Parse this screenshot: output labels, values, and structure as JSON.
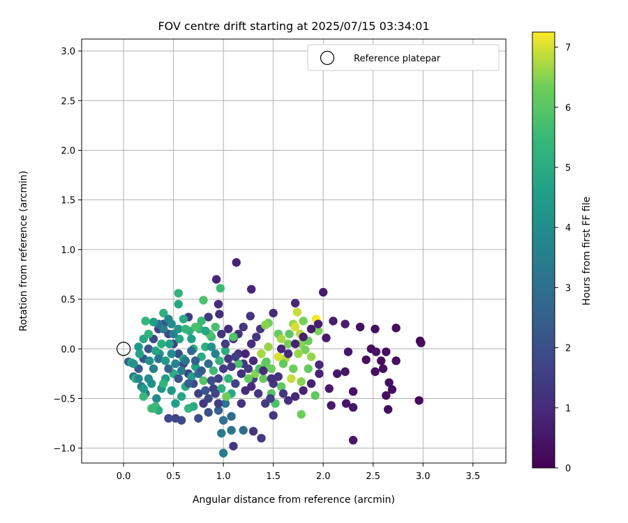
{
  "chart_data": {
    "type": "scatter",
    "title": "FOV centre drift starting at 2025/07/15 03:34:01",
    "xlabel": "Angular distance from reference (arcmin)",
    "ylabel": "Rotation from reference (arcmin)",
    "xlim": [
      -0.42,
      3.83
    ],
    "ylim": [
      -1.15,
      3.12
    ],
    "xticks": [
      0.0,
      0.5,
      1.0,
      1.5,
      2.0,
      2.5,
      3.0,
      3.5
    ],
    "xtick_labels": [
      "0.0",
      "0.5",
      "1.0",
      "1.5",
      "2.0",
      "2.5",
      "3.0",
      "3.5"
    ],
    "yticks": [
      -1.0,
      -0.5,
      0.0,
      0.5,
      1.0,
      1.5,
      2.0,
      2.5,
      3.0
    ],
    "ytick_labels": [
      "−1.0",
      "−0.5",
      "0.0",
      "0.5",
      "1.0",
      "1.5",
      "2.0",
      "2.5",
      "3.0"
    ],
    "grid": true,
    "legend": {
      "placement": "top-right",
      "entries": [
        "Reference platepar"
      ]
    },
    "reference_point": {
      "x": 0.0,
      "y": 0.0
    },
    "colorbar": {
      "label": "Hours from first FF file",
      "colormap": "viridis",
      "range": [
        0,
        7.25
      ],
      "ticks": [
        0,
        1,
        2,
        3,
        4,
        5,
        6,
        7
      ],
      "tick_labels": [
        "0",
        "1",
        "2",
        "3",
        "4",
        "5",
        "6",
        "7"
      ]
    },
    "points": [
      [
        1.13,
        0.87,
        0.8
      ],
      [
        0.93,
        0.7,
        0.9
      ],
      [
        1.28,
        0.6,
        0.9
      ],
      [
        2.0,
        0.57,
        0.6
      ],
      [
        0.97,
        0.61,
        5.6
      ],
      [
        0.55,
        0.56,
        5.3
      ],
      [
        0.8,
        0.49,
        5.8
      ],
      [
        1.72,
        0.46,
        0.9
      ],
      [
        0.95,
        0.45,
        1.0
      ],
      [
        1.5,
        0.36,
        1.0
      ],
      [
        0.55,
        0.45,
        4.9
      ],
      [
        0.4,
        0.36,
        5.2
      ],
      [
        0.65,
        0.32,
        1.5
      ],
      [
        1.74,
        0.37,
        6.9
      ],
      [
        1.93,
        0.3,
        7.2
      ],
      [
        1.8,
        0.28,
        6.4
      ],
      [
        2.1,
        0.28,
        0.7
      ],
      [
        2.22,
        0.25,
        0.7
      ],
      [
        2.37,
        0.22,
        0.3
      ],
      [
        2.52,
        0.2,
        0.3
      ],
      [
        2.73,
        0.21,
        0.3
      ],
      [
        2.97,
        0.08,
        0.2
      ],
      [
        2.98,
        0.06,
        0.2
      ],
      [
        2.03,
        0.11,
        0.6
      ],
      [
        2.25,
        -0.03,
        0.5
      ],
      [
        2.48,
        0.0,
        0.3
      ],
      [
        2.53,
        -0.03,
        0.4
      ],
      [
        2.63,
        -0.03,
        0.3
      ],
      [
        2.43,
        -0.11,
        0.3
      ],
      [
        2.58,
        -0.12,
        0.3
      ],
      [
        2.73,
        -0.12,
        0.3
      ],
      [
        2.6,
        -0.2,
        0.3
      ],
      [
        2.52,
        -0.23,
        0.3
      ],
      [
        2.22,
        -0.23,
        0.5
      ],
      [
        2.14,
        -0.25,
        0.5
      ],
      [
        1.96,
        -0.25,
        0.8
      ],
      [
        1.96,
        -0.16,
        0.9
      ],
      [
        2.66,
        -0.34,
        0.3
      ],
      [
        2.69,
        -0.41,
        0.3
      ],
      [
        2.63,
        -0.47,
        0.3
      ],
      [
        2.06,
        -0.4,
        0.6
      ],
      [
        2.3,
        -0.43,
        0.4
      ],
      [
        2.08,
        -0.57,
        0.6
      ],
      [
        2.23,
        -0.55,
        0.5
      ],
      [
        2.3,
        -0.59,
        0.5
      ],
      [
        2.65,
        -0.61,
        0.3
      ],
      [
        2.96,
        -0.52,
        0.2
      ],
      [
        2.3,
        -0.92,
        0.5
      ],
      [
        1.27,
        0.33,
        1.2
      ],
      [
        1.2,
        0.22,
        1.3
      ],
      [
        1.37,
        0.2,
        1.3
      ],
      [
        1.1,
        0.1,
        1.1
      ],
      [
        1.15,
        0.15,
        1.2
      ],
      [
        1.28,
        0.05,
        1.1
      ],
      [
        1.33,
        0.12,
        1.3
      ],
      [
        1.45,
        0.26,
        6.3
      ],
      [
        1.42,
        0.24,
        6.5
      ],
      [
        1.55,
        0.15,
        6.2
      ],
      [
        1.58,
        0.1,
        6.7
      ],
      [
        1.65,
        0.05,
        6.4
      ],
      [
        1.7,
        0.25,
        6.6
      ],
      [
        1.77,
        0.15,
        6.8
      ],
      [
        1.72,
        0.22,
        7.0
      ],
      [
        1.66,
        0.15,
        6.1
      ],
      [
        1.78,
        0.05,
        6.5
      ],
      [
        1.85,
        0.08,
        6.3
      ],
      [
        1.82,
        -0.01,
        6.4
      ],
      [
        1.75,
        -0.05,
        6.6
      ],
      [
        1.62,
        -0.1,
        6.8
      ],
      [
        1.55,
        -0.08,
        7.0
      ],
      [
        1.6,
        -0.15,
        6.2
      ],
      [
        1.7,
        -0.2,
        6.3
      ],
      [
        1.68,
        -0.3,
        6.9
      ],
      [
        1.78,
        -0.33,
        6.5
      ],
      [
        1.85,
        -0.2,
        6.2
      ],
      [
        1.88,
        -0.08,
        6.6
      ],
      [
        1.95,
        0.18,
        6.4
      ],
      [
        1.92,
        -0.47,
        6.1
      ],
      [
        1.78,
        -0.66,
        6.3
      ],
      [
        1.52,
        -0.55,
        5.8
      ],
      [
        1.48,
        -0.45,
        6.0
      ],
      [
        1.4,
        -0.3,
        6.2
      ],
      [
        1.42,
        -0.15,
        6.4
      ],
      [
        1.38,
        -0.05,
        6.7
      ],
      [
        1.45,
        0.02,
        6.6
      ],
      [
        1.48,
        -0.2,
        6.3
      ],
      [
        1.58,
        -0.38,
        6.1
      ],
      [
        1.5,
        -0.35,
        1.3
      ],
      [
        1.47,
        -0.5,
        1.5
      ],
      [
        1.5,
        -0.67,
        1.2
      ],
      [
        1.42,
        -0.55,
        1.4
      ],
      [
        1.35,
        -0.45,
        1.3
      ],
      [
        1.3,
        -0.3,
        1.5
      ],
      [
        1.25,
        -0.2,
        1.4
      ],
      [
        1.2,
        -0.15,
        1.3
      ],
      [
        1.15,
        -0.05,
        1.2
      ],
      [
        1.05,
        -0.1,
        1.3
      ],
      [
        1.0,
        -0.2,
        1.4
      ],
      [
        0.95,
        -0.3,
        1.6
      ],
      [
        0.9,
        -0.4,
        1.5
      ],
      [
        0.85,
        -0.5,
        1.7
      ],
      [
        0.8,
        -0.55,
        1.4
      ],
      [
        0.75,
        -0.45,
        1.6
      ],
      [
        0.7,
        -0.35,
        1.8
      ],
      [
        0.65,
        -0.25,
        1.5
      ],
      [
        0.6,
        -0.15,
        1.7
      ],
      [
        0.55,
        -0.05,
        1.9
      ],
      [
        0.5,
        0.05,
        1.6
      ],
      [
        0.45,
        0.15,
        1.8
      ],
      [
        0.4,
        0.25,
        2.0
      ],
      [
        0.35,
        0.2,
        1.7
      ],
      [
        0.3,
        0.1,
        1.9
      ],
      [
        0.25,
        0.0,
        2.1
      ],
      [
        0.2,
        -0.1,
        2.2
      ],
      [
        0.15,
        -0.2,
        2.3
      ],
      [
        0.1,
        -0.28,
        3.4
      ],
      [
        0.05,
        -0.13,
        2.4
      ],
      [
        0.18,
        -0.38,
        3.3
      ],
      [
        0.22,
        -0.45,
        3.6
      ],
      [
        0.28,
        -0.35,
        4.0
      ],
      [
        0.33,
        -0.5,
        3.9
      ],
      [
        0.38,
        -0.4,
        4.2
      ],
      [
        0.42,
        -0.3,
        4.5
      ],
      [
        0.48,
        -0.42,
        4.3
      ],
      [
        0.52,
        -0.55,
        4.6
      ],
      [
        0.58,
        -0.48,
        4.8
      ],
      [
        0.62,
        -0.38,
        5.0
      ],
      [
        0.68,
        -0.28,
        4.4
      ],
      [
        0.72,
        -0.18,
        4.7
      ],
      [
        0.78,
        -0.08,
        5.0
      ],
      [
        0.82,
        0.02,
        5.2
      ],
      [
        0.88,
        0.12,
        5.5
      ],
      [
        0.92,
        0.22,
        5.7
      ],
      [
        0.86,
        0.15,
        5.9
      ],
      [
        0.76,
        0.2,
        5.4
      ],
      [
        0.66,
        0.18,
        5.1
      ],
      [
        0.56,
        0.1,
        4.9
      ],
      [
        0.46,
        0.05,
        4.6
      ],
      [
        0.36,
        -0.05,
        4.3
      ],
      [
        0.26,
        -0.12,
        4.1
      ],
      [
        0.16,
        -0.05,
        4.7
      ],
      [
        0.08,
        -0.14,
        4.8
      ],
      [
        0.12,
        -0.3,
        5.2
      ],
      [
        0.2,
        -0.48,
        5.5
      ],
      [
        0.28,
        -0.6,
        5.8
      ],
      [
        0.32,
        -0.58,
        5.6
      ],
      [
        0.4,
        -0.35,
        5.3
      ],
      [
        0.5,
        -0.25,
        5.0
      ],
      [
        0.6,
        -0.1,
        4.8
      ],
      [
        0.7,
        0.0,
        5.1
      ],
      [
        0.8,
        -0.32,
        5.9
      ],
      [
        0.9,
        -0.22,
        5.6
      ],
      [
        0.96,
        -0.12,
        5.3
      ],
      [
        1.02,
        -0.02,
        5.1
      ],
      [
        1.05,
        -0.3,
        5.4
      ],
      [
        0.98,
        -0.4,
        5.2
      ],
      [
        1.08,
        -0.45,
        4.9
      ],
      [
        1.02,
        -0.55,
        3.2
      ],
      [
        0.95,
        -0.62,
        2.5
      ],
      [
        1.0,
        -0.72,
        3.0
      ],
      [
        1.08,
        -0.68,
        2.8
      ],
      [
        1.08,
        -0.82,
        3.1
      ],
      [
        1.1,
        -0.98,
        1.3
      ],
      [
        1.2,
        -0.82,
        2.9
      ],
      [
        1.3,
        -0.83,
        1.2
      ],
      [
        1.38,
        -0.9,
        1.4
      ],
      [
        0.98,
        -0.85,
        3.3
      ],
      [
        1.0,
        -1.05,
        3.4
      ],
      [
        0.85,
        -0.64,
        2.0
      ],
      [
        0.75,
        -0.7,
        1.9
      ],
      [
        0.58,
        -0.72,
        1.8
      ],
      [
        0.52,
        -0.7,
        1.7
      ],
      [
        0.45,
        -0.7,
        1.8
      ],
      [
        0.35,
        -0.62,
        5.0
      ],
      [
        0.3,
        -0.6,
        5.5
      ],
      [
        0.65,
        -0.6,
        5.4
      ],
      [
        0.7,
        -0.58,
        5.0
      ],
      [
        1.03,
        -0.48,
        6.3
      ],
      [
        1.25,
        -0.3,
        6.2
      ],
      [
        1.32,
        -0.25,
        6.5
      ],
      [
        1.43,
        -0.13,
        6.1
      ],
      [
        1.36,
        -0.2,
        5.9
      ],
      [
        1.15,
        -0.15,
        5.8
      ],
      [
        1.1,
        0.12,
        5.9
      ],
      [
        0.85,
        0.32,
        1.4
      ],
      [
        0.96,
        0.35,
        1.1
      ],
      [
        0.35,
        0.25,
        3.0
      ],
      [
        0.4,
        0.2,
        3.5
      ],
      [
        0.45,
        0.3,
        3.8
      ],
      [
        0.3,
        0.27,
        4.6
      ],
      [
        0.22,
        0.28,
        5.4
      ],
      [
        0.48,
        0.25,
        4.0
      ],
      [
        0.5,
        0.15,
        3.6
      ],
      [
        0.55,
        0.2,
        4.2
      ],
      [
        0.6,
        0.3,
        5.0
      ],
      [
        0.62,
        0.2,
        5.4
      ],
      [
        0.68,
        0.1,
        4.6
      ],
      [
        0.72,
        0.22,
        5.8
      ],
      [
        0.78,
        0.28,
        5.5
      ],
      [
        0.82,
        0.18,
        4.8
      ],
      [
        0.88,
        0.02,
        4.1
      ],
      [
        0.92,
        -0.05,
        3.6
      ],
      [
        0.85,
        -0.15,
        3.0
      ],
      [
        0.75,
        -0.25,
        2.7
      ],
      [
        0.65,
        -0.35,
        2.5
      ],
      [
        0.55,
        -0.3,
        2.2
      ],
      [
        0.45,
        -0.2,
        2.6
      ],
      [
        0.35,
        -0.1,
        3.1
      ],
      [
        0.3,
        -0.2,
        3.6
      ],
      [
        0.25,
        -0.3,
        3.9
      ],
      [
        0.2,
        -0.4,
        4.4
      ],
      [
        0.15,
        -0.3,
        3.8
      ],
      [
        0.1,
        -0.15,
        4.2
      ],
      [
        0.15,
        0.02,
        4.4
      ],
      [
        0.2,
        0.1,
        4.9
      ],
      [
        0.25,
        0.15,
        5.3
      ],
      [
        0.32,
        -0.02,
        4.8
      ],
      [
        0.38,
        0.05,
        5.1
      ],
      [
        0.42,
        -0.12,
        4.5
      ],
      [
        0.48,
        -0.05,
        4.0
      ],
      [
        0.52,
        -0.15,
        3.7
      ],
      [
        0.58,
        -0.22,
        3.4
      ],
      [
        0.62,
        -0.12,
        3.1
      ],
      [
        0.68,
        -0.02,
        2.8
      ],
      [
        0.72,
        -0.12,
        2.5
      ],
      [
        0.78,
        -0.22,
        2.3
      ],
      [
        0.82,
        -0.42,
        2.1
      ],
      [
        0.88,
        -0.32,
        1.9
      ],
      [
        0.92,
        -0.45,
        1.7
      ],
      [
        0.95,
        -0.55,
        1.5
      ],
      [
        1.12,
        -0.35,
        1.7
      ],
      [
        1.18,
        -0.55,
        1.2
      ],
      [
        1.22,
        -0.42,
        1.0
      ],
      [
        1.28,
        -0.38,
        0.9
      ],
      [
        1.18,
        -0.25,
        1.1
      ],
      [
        1.08,
        -0.18,
        1.4
      ],
      [
        1.12,
        -0.08,
        1.6
      ],
      [
        1.02,
        0.05,
        1.5
      ],
      [
        0.98,
        0.15,
        1.3
      ],
      [
        1.05,
        0.2,
        1.0
      ],
      [
        1.22,
        -0.05,
        0.8
      ],
      [
        1.3,
        -0.12,
        0.9
      ],
      [
        1.4,
        -0.22,
        1.0
      ],
      [
        1.48,
        -0.3,
        1.1
      ],
      [
        1.55,
        -0.28,
        1.2
      ],
      [
        1.6,
        -0.45,
        1.3
      ],
      [
        1.65,
        -0.52,
        1.1
      ],
      [
        1.72,
        -0.48,
        0.9
      ],
      [
        1.8,
        -0.42,
        0.8
      ],
      [
        1.88,
        -0.35,
        0.7
      ],
      [
        1.58,
        0.0,
        0.9
      ],
      [
        1.65,
        -0.05,
        1.0
      ],
      [
        1.72,
        0.05,
        0.8
      ],
      [
        1.8,
        0.12,
        0.7
      ],
      [
        1.88,
        0.2,
        0.6
      ],
      [
        1.95,
        0.25,
        0.7
      ]
    ]
  }
}
